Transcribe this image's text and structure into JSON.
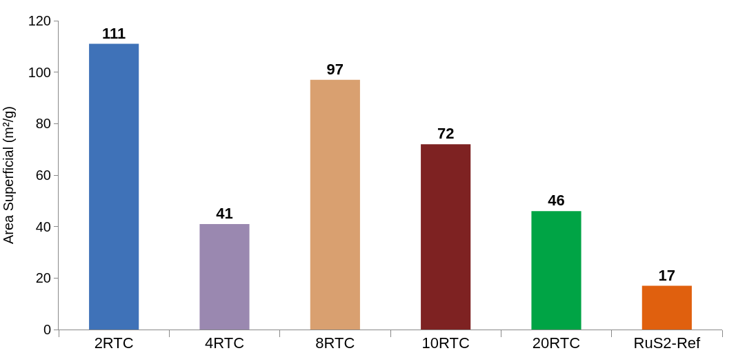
{
  "chart_data": {
    "type": "bar",
    "ylabel": "Area Superficial (m²/g)",
    "categories": [
      "2RTC",
      "4RTC",
      "8RTC",
      "10RTC",
      "20RTC",
      "RuS2-Ref"
    ],
    "values": [
      111,
      41,
      97,
      72,
      46,
      17
    ],
    "colors": [
      "#3f72b8",
      "#9a88b0",
      "#d9a070",
      "#7e2222",
      "#00a445",
      "#e0600e"
    ],
    "ylim": [
      0,
      120
    ],
    "yticks": [
      0,
      20,
      40,
      60,
      80,
      100,
      120
    ],
    "data_labels": true,
    "grid": false
  }
}
